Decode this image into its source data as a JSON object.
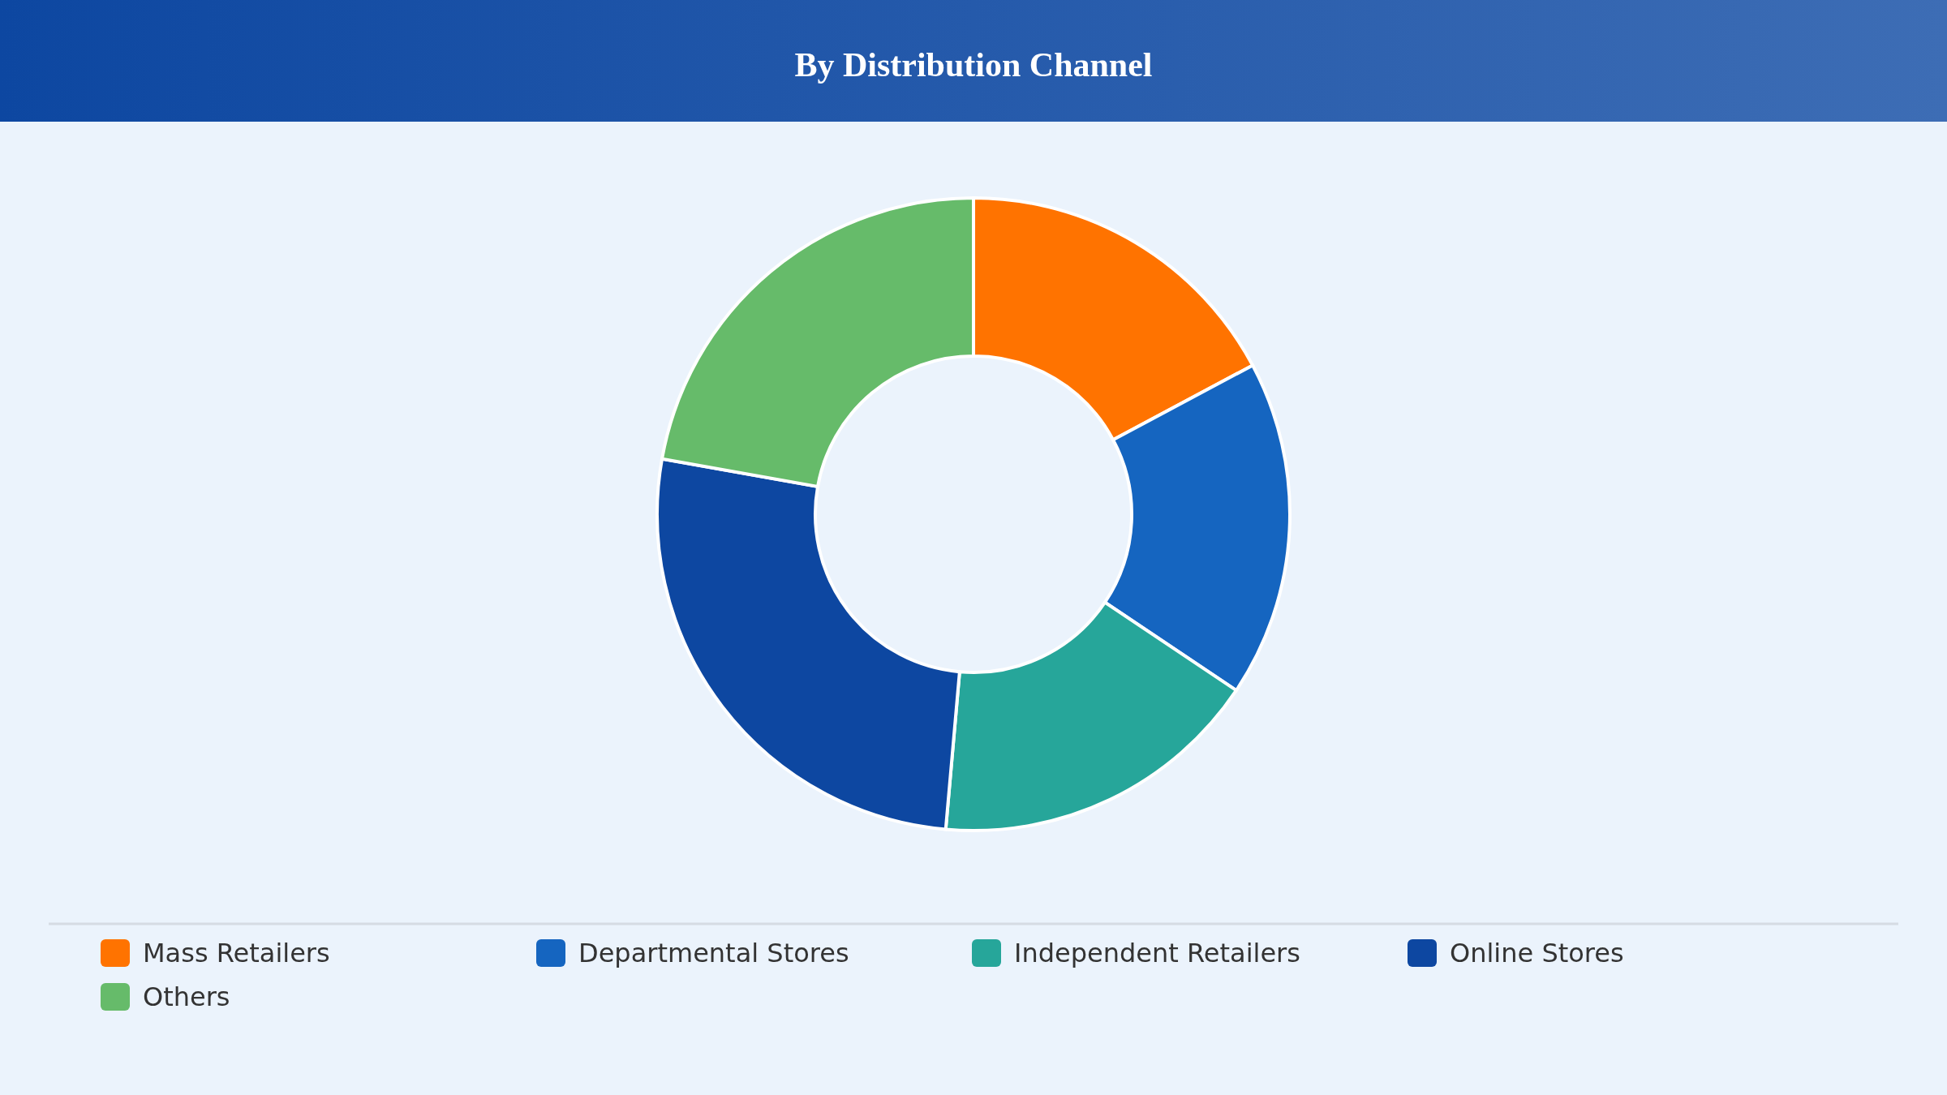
{
  "chart_data": {
    "type": "donut",
    "title": "By Distribution Channel",
    "categories": [
      "Mass Retailers",
      "Departmental Stores",
      "Independent Retailers",
      "Online Stores",
      "Others"
    ],
    "values": [
      17.2,
      17.2,
      17,
      26.4,
      22.2
    ],
    "colors": [
      "#ff7300",
      "#1565c0",
      "#26a69a",
      "#0d47a1",
      "#66bb6a"
    ],
    "legend": "bottom"
  }
}
